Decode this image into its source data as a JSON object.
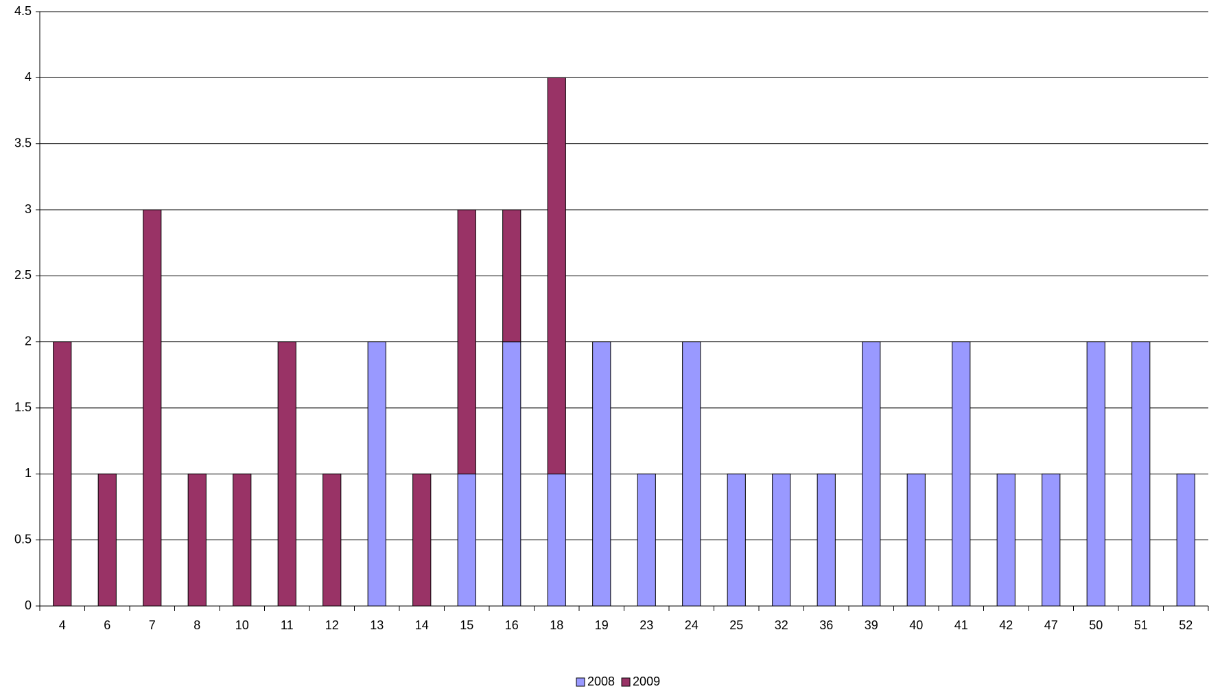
{
  "chart_data": {
    "type": "stacked-bar",
    "categories": [
      "4",
      "6",
      "7",
      "8",
      "10",
      "11",
      "12",
      "13",
      "14",
      "15",
      "16",
      "18",
      "19",
      "23",
      "24",
      "25",
      "32",
      "36",
      "39",
      "40",
      "41",
      "42",
      "47",
      "50",
      "51",
      "52"
    ],
    "series": [
      {
        "name": "2008",
        "color": "#9999ff",
        "values": [
          0,
          0,
          0,
          0,
          0,
          0,
          0,
          2,
          0,
          1,
          2,
          1,
          2,
          1,
          2,
          1,
          1,
          1,
          2,
          1,
          2,
          1,
          1,
          2,
          2,
          1
        ]
      },
      {
        "name": "2009",
        "color": "#993366",
        "values": [
          2,
          1,
          3,
          1,
          1,
          2,
          1,
          0,
          1,
          2,
          1,
          3,
          0,
          0,
          0,
          0,
          0,
          0,
          0,
          0,
          0,
          0,
          0,
          0,
          0,
          0
        ]
      }
    ],
    "ylim": [
      0,
      4.5
    ],
    "yticks": [
      0,
      0.5,
      1,
      1.5,
      2,
      2.5,
      3,
      3.5,
      4,
      4.5
    ],
    "grid": true,
    "legend": "bottom"
  }
}
